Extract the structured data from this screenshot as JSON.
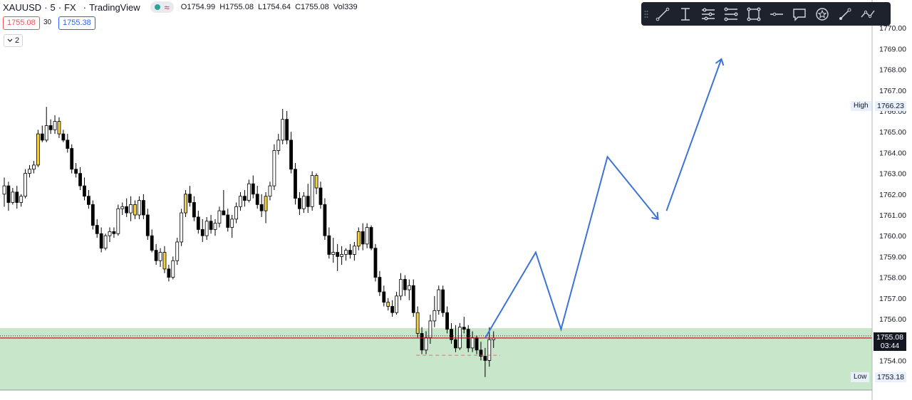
{
  "header": {
    "symbol": "XAUUSD",
    "timeframe": "5",
    "exchange": "FX",
    "source": "TradingView",
    "open_label": "O",
    "open": "1754.99",
    "high_label": "H",
    "high": "1755.08",
    "low_label": "L",
    "low": "1754.64",
    "close_label": "C",
    "close": "1755.08",
    "volume_label": "Vol",
    "volume": "339",
    "separator": "·"
  },
  "order_panel": {
    "sell_price": "1755.08",
    "spread": "30",
    "buy_price": "1755.38"
  },
  "collapse": {
    "label": "2",
    "icon": "chevron-down-icon"
  },
  "toolbar": {
    "icons": [
      "drag-handle-icon",
      "trend-line-icon",
      "text-cursor-icon",
      "horizontal-lines-icon",
      "parallel-channel-icon",
      "rectangle-icon",
      "horizontal-line-icon",
      "callout-icon",
      "star-badge-icon",
      "brush-icon",
      "path-icon"
    ]
  },
  "labels": {
    "high_tag": "High",
    "high_value": "1766.23",
    "low_tag": "Low",
    "low_value": "1753.18",
    "current_price": "1755.08",
    "countdown": "03:44"
  },
  "colors": {
    "candle_up_fill": "#ffffff",
    "candle_down_fill": "#000000",
    "candle_highlight": "#f5d142",
    "zone": "#c8e6c9",
    "projection": "#3d73d6",
    "price_line": "#b71c1c",
    "background": "#ffffff"
  },
  "chart_data": {
    "type": "candlestick",
    "symbol": "XAUUSD",
    "interval": "5",
    "ylim": [
      1752.5,
      1770.5
    ],
    "yticks": [
      "1754.00",
      "1755.00",
      "1756.00",
      "1757.00",
      "1758.00",
      "1759.00",
      "1760.00",
      "1761.00",
      "1762.00",
      "1763.00",
      "1764.00",
      "1765.00",
      "1766.00",
      "1767.00",
      "1768.00",
      "1769.00",
      "1770.00"
    ],
    "current_price": 1755.08,
    "session_high": 1766.23,
    "session_low": 1753.18,
    "demand_zone": [
      1752.5,
      1755.55
    ],
    "dashed_level": 1754.25,
    "candles": [
      [
        1762.0,
        1762.8,
        1761.4,
        1762.4
      ],
      [
        1762.4,
        1762.6,
        1761.2,
        1761.6
      ],
      [
        1761.6,
        1762.3,
        1761.5,
        1762.1
      ],
      [
        1762.1,
        1762.4,
        1761.3,
        1761.6
      ],
      [
        1761.6,
        1762.0,
        1761.4,
        1761.9
      ],
      [
        1761.9,
        1763.2,
        1761.8,
        1763.0
      ],
      [
        1763.0,
        1763.4,
        1762.8,
        1763.2
      ],
      [
        1763.2,
        1763.6,
        1763.0,
        1763.4
      ],
      [
        1763.4,
        1765.1,
        1763.3,
        1764.9
      ],
      [
        1764.9,
        1765.3,
        1764.5,
        1764.6
      ],
      [
        1764.6,
        1766.2,
        1764.5,
        1765.3
      ],
      [
        1765.3,
        1765.6,
        1764.9,
        1765.1
      ],
      [
        1765.1,
        1765.8,
        1764.9,
        1765.5
      ],
      [
        1765.5,
        1765.7,
        1764.7,
        1764.9
      ],
      [
        1764.9,
        1765.1,
        1764.5,
        1764.6
      ],
      [
        1764.6,
        1764.9,
        1764.0,
        1764.2
      ],
      [
        1764.2,
        1764.4,
        1763.0,
        1763.2
      ],
      [
        1763.2,
        1763.5,
        1762.8,
        1763.0
      ],
      [
        1763.0,
        1763.3,
        1762.2,
        1762.4
      ],
      [
        1762.4,
        1762.8,
        1761.7,
        1761.9
      ],
      [
        1761.9,
        1762.2,
        1761.3,
        1761.5
      ],
      [
        1761.5,
        1761.7,
        1760.3,
        1760.5
      ],
      [
        1760.5,
        1760.8,
        1759.9,
        1760.1
      ],
      [
        1760.1,
        1760.4,
        1759.2,
        1759.4
      ],
      [
        1759.4,
        1760.1,
        1759.3,
        1760.0
      ],
      [
        1760.0,
        1760.4,
        1759.7,
        1760.2
      ],
      [
        1760.2,
        1760.4,
        1759.9,
        1760.1
      ],
      [
        1760.1,
        1761.5,
        1760.0,
        1761.3
      ],
      [
        1761.3,
        1761.6,
        1761.0,
        1761.4
      ],
      [
        1761.4,
        1761.8,
        1760.9,
        1761.1
      ],
      [
        1761.1,
        1761.9,
        1760.7,
        1761.5
      ],
      [
        1761.5,
        1761.7,
        1760.8,
        1761.0
      ],
      [
        1761.0,
        1761.9,
        1760.8,
        1761.7
      ],
      [
        1761.7,
        1762.0,
        1760.8,
        1761.0
      ],
      [
        1761.0,
        1761.3,
        1759.8,
        1760.0
      ],
      [
        1760.0,
        1760.3,
        1759.2,
        1759.3
      ],
      [
        1759.3,
        1759.6,
        1758.6,
        1758.8
      ],
      [
        1758.8,
        1759.4,
        1758.5,
        1759.2
      ],
      [
        1759.2,
        1759.5,
        1758.2,
        1758.4
      ],
      [
        1758.4,
        1758.6,
        1757.8,
        1758.0
      ],
      [
        1758.0,
        1759.0,
        1757.9,
        1758.8
      ],
      [
        1758.8,
        1759.9,
        1758.6,
        1759.7
      ],
      [
        1759.7,
        1761.3,
        1759.5,
        1761.1
      ],
      [
        1761.1,
        1762.2,
        1760.9,
        1762.0
      ],
      [
        1762.0,
        1762.4,
        1761.4,
        1761.6
      ],
      [
        1761.6,
        1761.9,
        1760.7,
        1760.9
      ],
      [
        1760.9,
        1761.2,
        1760.1,
        1760.3
      ],
      [
        1760.3,
        1760.8,
        1759.7,
        1760.0
      ],
      [
        1760.0,
        1760.9,
        1759.8,
        1760.7
      ],
      [
        1760.7,
        1761.0,
        1760.1,
        1760.3
      ],
      [
        1760.3,
        1760.8,
        1760.0,
        1760.6
      ],
      [
        1760.6,
        1761.4,
        1760.4,
        1761.2
      ],
      [
        1761.2,
        1762.2,
        1761.0,
        1761.0
      ],
      [
        1761.0,
        1761.3,
        1760.2,
        1760.4
      ],
      [
        1760.4,
        1761.0,
        1759.9,
        1760.8
      ],
      [
        1760.8,
        1761.6,
        1760.6,
        1761.4
      ],
      [
        1761.4,
        1762.1,
        1761.2,
        1761.9
      ],
      [
        1761.9,
        1762.2,
        1761.4,
        1761.7
      ],
      [
        1761.7,
        1762.7,
        1761.6,
        1762.5
      ],
      [
        1762.5,
        1762.9,
        1761.8,
        1762.0
      ],
      [
        1762.0,
        1762.4,
        1761.3,
        1761.5
      ],
      [
        1761.5,
        1762.0,
        1760.9,
        1761.2
      ],
      [
        1761.2,
        1762.1,
        1760.6,
        1761.9
      ],
      [
        1761.9,
        1762.6,
        1761.7,
        1762.4
      ],
      [
        1762.4,
        1764.4,
        1762.2,
        1764.1
      ],
      [
        1764.1,
        1764.9,
        1763.9,
        1764.6
      ],
      [
        1764.6,
        1766.1,
        1764.4,
        1765.6
      ],
      [
        1765.6,
        1766.0,
        1764.4,
        1764.6
      ],
      [
        1764.6,
        1765.0,
        1763.0,
        1763.2
      ],
      [
        1763.2,
        1763.5,
        1761.5,
        1761.8
      ],
      [
        1761.8,
        1762.1,
        1761.0,
        1761.3
      ],
      [
        1761.3,
        1762.1,
        1761.1,
        1761.9
      ],
      [
        1761.9,
        1762.5,
        1761.1,
        1761.4
      ],
      [
        1761.4,
        1763.1,
        1761.2,
        1762.9
      ],
      [
        1762.9,
        1763.0,
        1762.0,
        1762.3
      ],
      [
        1762.3,
        1762.6,
        1761.3,
        1761.5
      ],
      [
        1761.5,
        1761.8,
        1759.8,
        1760.0
      ],
      [
        1760.0,
        1760.4,
        1758.9,
        1759.1
      ],
      [
        1759.1,
        1759.9,
        1758.7,
        1759.2
      ],
      [
        1759.2,
        1759.6,
        1758.3,
        1759.0
      ],
      [
        1759.0,
        1759.5,
        1758.6,
        1759.1
      ],
      [
        1759.1,
        1759.4,
        1758.8,
        1759.3
      ],
      [
        1759.3,
        1759.6,
        1758.9,
        1759.1
      ],
      [
        1759.1,
        1759.7,
        1758.8,
        1759.5
      ],
      [
        1759.5,
        1760.4,
        1759.3,
        1760.2
      ],
      [
        1760.2,
        1760.6,
        1759.3,
        1759.6
      ],
      [
        1759.6,
        1760.6,
        1759.4,
        1760.4
      ],
      [
        1760.4,
        1760.5,
        1759.3,
        1759.4
      ],
      [
        1759.4,
        1759.6,
        1757.8,
        1758.0
      ],
      [
        1758.0,
        1758.3,
        1757.1,
        1757.3
      ],
      [
        1757.3,
        1757.6,
        1756.6,
        1756.8
      ],
      [
        1756.8,
        1757.0,
        1756.4,
        1756.6
      ],
      [
        1756.6,
        1756.9,
        1756.1,
        1756.3
      ],
      [
        1756.3,
        1757.3,
        1756.2,
        1757.1
      ],
      [
        1757.1,
        1758.2,
        1756.9,
        1757.9
      ],
      [
        1757.9,
        1758.1,
        1757.1,
        1757.4
      ],
      [
        1757.4,
        1757.9,
        1756.9,
        1757.6
      ],
      [
        1757.6,
        1757.9,
        1756.1,
        1756.3
      ],
      [
        1756.3,
        1756.6,
        1755.1,
        1755.3
      ],
      [
        1755.3,
        1755.6,
        1754.3,
        1754.5
      ],
      [
        1754.5,
        1755.4,
        1754.3,
        1755.1
      ],
      [
        1755.1,
        1756.2,
        1754.8,
        1755.9
      ],
      [
        1755.9,
        1757.1,
        1755.6,
        1756.4
      ],
      [
        1756.4,
        1757.6,
        1756.2,
        1757.4
      ],
      [
        1757.4,
        1757.6,
        1756.1,
        1756.3
      ],
      [
        1756.3,
        1756.6,
        1755.3,
        1755.5
      ],
      [
        1755.5,
        1755.8,
        1754.8,
        1755.0
      ],
      [
        1755.0,
        1755.7,
        1754.4,
        1754.6
      ],
      [
        1754.6,
        1755.8,
        1754.5,
        1755.6
      ],
      [
        1755.6,
        1756.1,
        1755.3,
        1755.5
      ],
      [
        1755.5,
        1755.7,
        1754.4,
        1754.6
      ],
      [
        1754.6,
        1755.4,
        1754.4,
        1755.1
      ],
      [
        1755.1,
        1755.2,
        1754.3,
        1754.5
      ],
      [
        1754.5,
        1754.9,
        1754.0,
        1754.2
      ],
      [
        1754.2,
        1754.6,
        1753.2,
        1754.0
      ],
      [
        1754.0,
        1755.6,
        1753.7,
        1755.0
      ],
      [
        1755.0,
        1755.4,
        1754.6,
        1755.08
      ]
    ],
    "highlighted_candles": [
      8,
      13,
      31,
      38,
      43,
      62,
      74,
      84,
      91,
      98
    ],
    "projection_path": [
      [
        114,
        1755.08
      ],
      [
        126,
        1759.2
      ],
      [
        132,
        1755.5
      ],
      [
        143,
        1763.8
      ],
      [
        155,
        1760.8
      ]
    ],
    "projection_arrow": [
      [
        157,
        1761.2
      ],
      [
        170,
        1768.5
      ]
    ]
  }
}
